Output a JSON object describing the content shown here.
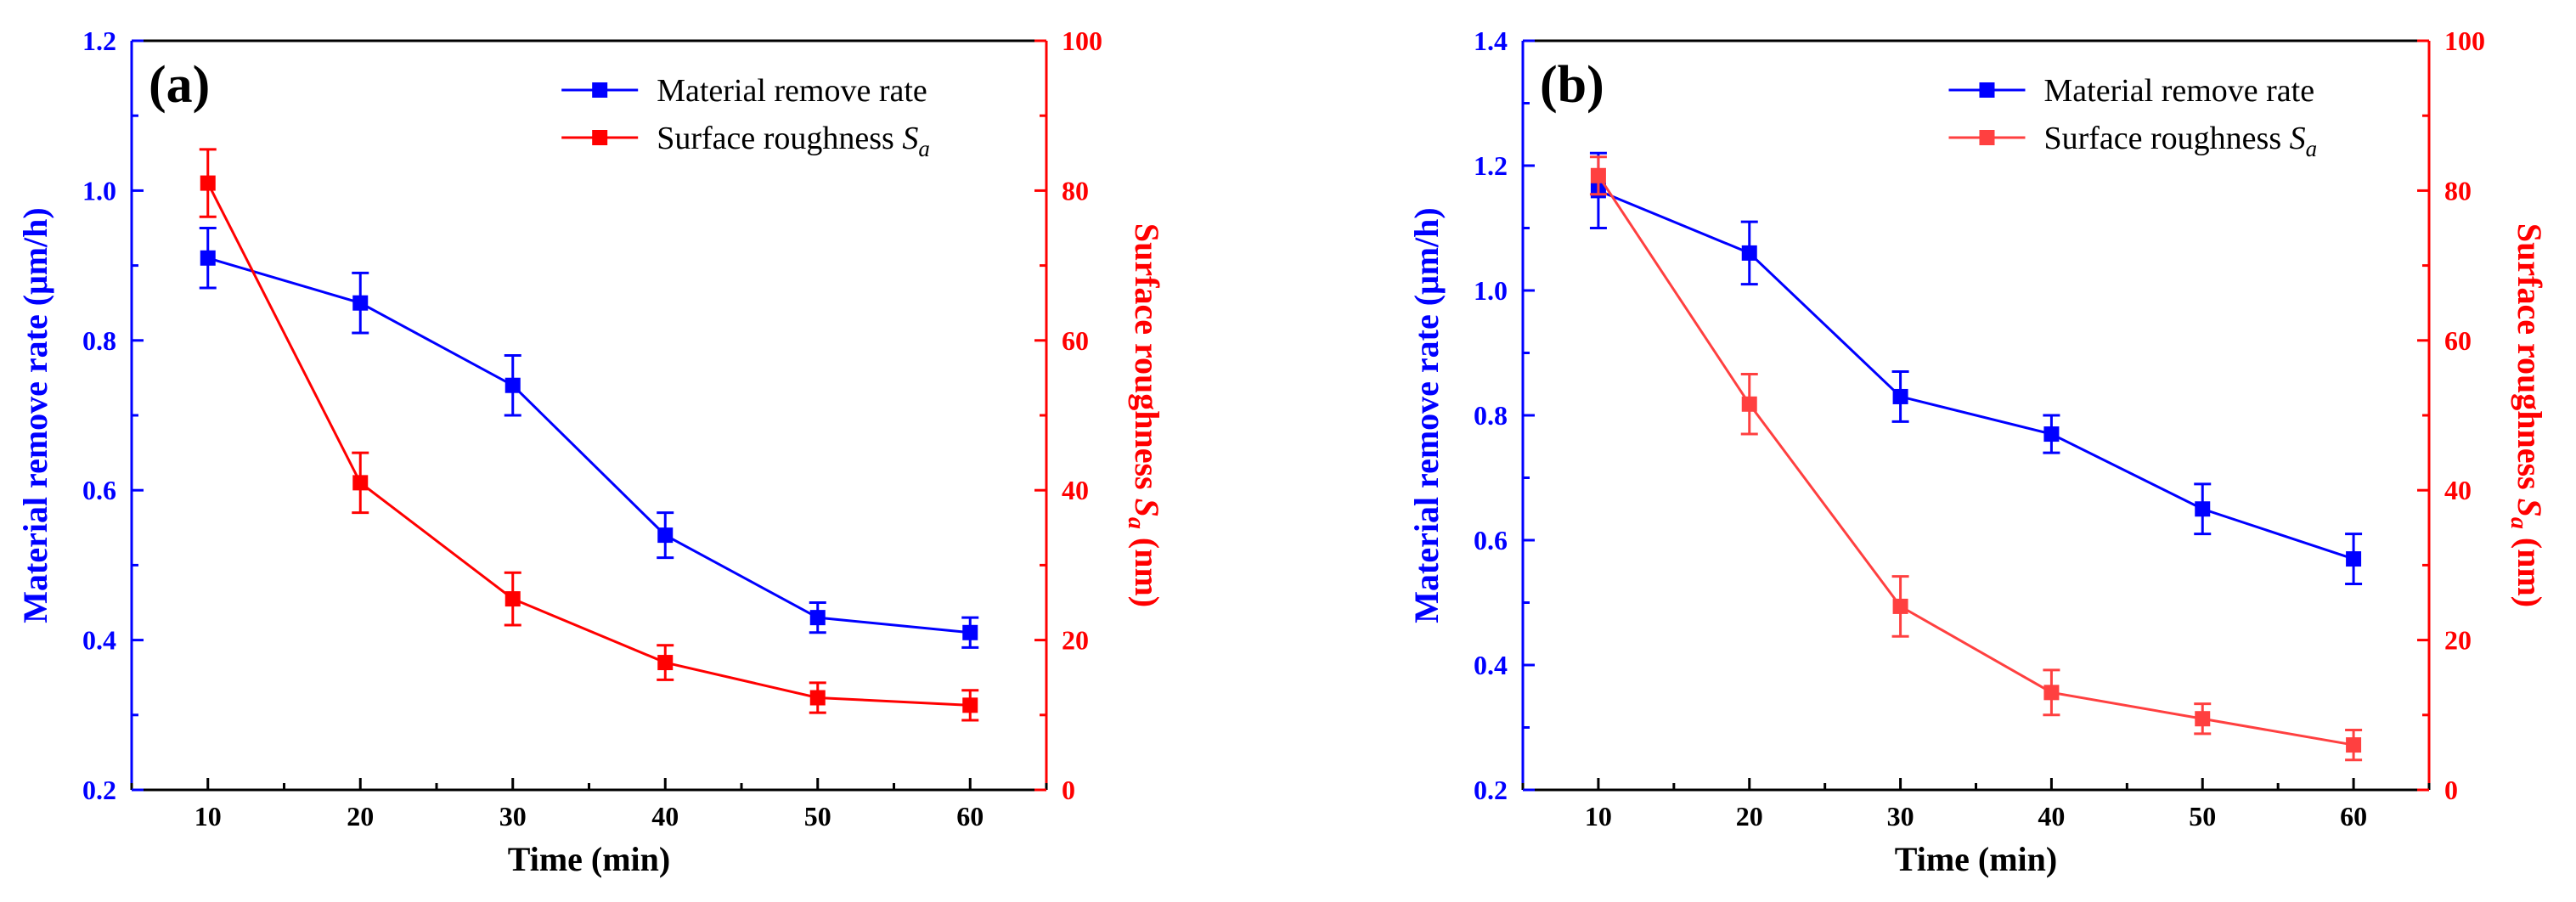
{
  "chart_data": [
    {
      "type": "line",
      "panel_label": "(a)",
      "xlabel": "Time (min)",
      "ylabel_left": "Material remove rate (μm/h)",
      "ylabel_right_prefix": "Surface roughness ",
      "ylabel_right_symbol": "S",
      "ylabel_right_sub": "a",
      "ylabel_right_suffix": " (nm)",
      "x": [
        10,
        20,
        30,
        40,
        50,
        60
      ],
      "xlim": [
        5,
        65
      ],
      "xticks": [
        10,
        20,
        30,
        40,
        50,
        60
      ],
      "ylim_left": [
        0.2,
        1.2
      ],
      "yticks_left": [
        "0.2",
        "0.4",
        "0.6",
        "0.8",
        "1.0",
        "1.2"
      ],
      "ylim_right": [
        0,
        100
      ],
      "yticks_right": [
        "0",
        "20",
        "40",
        "60",
        "80",
        "100"
      ],
      "legend_position": "top-right",
      "series": [
        {
          "name": "Material remove rate",
          "name_symbol": "",
          "name_sub": "",
          "axis": "left",
          "color": "#0000ff",
          "values": [
            0.91,
            0.85,
            0.74,
            0.54,
            0.43,
            0.41
          ],
          "errors": [
            0.04,
            0.04,
            0.04,
            0.03,
            0.02,
            0.02
          ]
        },
        {
          "name": "Surface roughness ",
          "name_symbol": "S",
          "name_sub": "a",
          "axis": "right",
          "color": "#ff0000",
          "values": [
            81,
            41,
            25.5,
            17,
            12.3,
            11.3
          ],
          "errors": [
            4.5,
            4,
            3.5,
            2.3,
            2.0,
            2.0
          ]
        }
      ]
    },
    {
      "type": "line",
      "panel_label": "(b)",
      "xlabel": "Time (min)",
      "ylabel_left": "Material remove rate (μm/h)",
      "ylabel_right_prefix": "Surface roughness ",
      "ylabel_right_symbol": "S",
      "ylabel_right_sub": "a",
      "ylabel_right_suffix": " (nm)",
      "x": [
        10,
        20,
        30,
        40,
        50,
        60
      ],
      "xlim": [
        5,
        65
      ],
      "xticks": [
        10,
        20,
        30,
        40,
        50,
        60
      ],
      "ylim_left": [
        0.2,
        1.4
      ],
      "yticks_left": [
        "0.2",
        "0.4",
        "0.6",
        "0.8",
        "1.0",
        "1.2",
        "1.4"
      ],
      "ylim_right": [
        0,
        100
      ],
      "yticks_right": [
        "0",
        "20",
        "40",
        "60",
        "80",
        "100"
      ],
      "legend_position": "top-right",
      "series": [
        {
          "name": "Material remove rate",
          "name_symbol": "",
          "name_sub": "",
          "axis": "left",
          "color": "#0000ff",
          "values": [
            1.16,
            1.06,
            0.83,
            0.77,
            0.65,
            0.57
          ],
          "errors": [
            0.06,
            0.05,
            0.04,
            0.03,
            0.04,
            0.04
          ]
        },
        {
          "name": "Surface roughness ",
          "name_symbol": "S",
          "name_sub": "a",
          "axis": "right",
          "color": "#ff4040",
          "values": [
            82,
            51.5,
            24.5,
            13,
            9.5,
            6
          ],
          "errors": [
            2.5,
            4.0,
            4.0,
            3.0,
            2.0,
            2.0
          ]
        }
      ]
    }
  ]
}
